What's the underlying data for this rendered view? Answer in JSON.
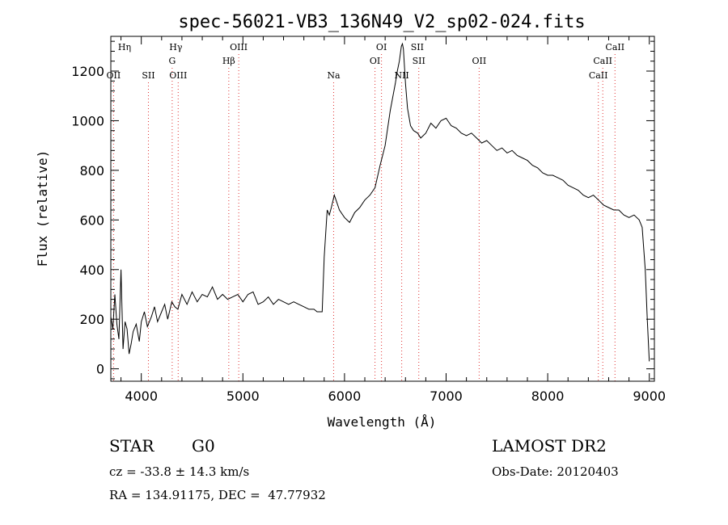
{
  "chart_data": {
    "type": "line",
    "title": "spec-56021-VB3_136N49_V2_sp02-024.fits",
    "xlabel": "Wavelength (Å)",
    "ylabel": "Flux (relative)",
    "xlim": [
      3700,
      9050
    ],
    "ylim": [
      -50,
      1340
    ],
    "x_ticks": [
      4000,
      5000,
      6000,
      7000,
      8000,
      9000
    ],
    "y_ticks": [
      0,
      200,
      400,
      600,
      800,
      1000,
      1200
    ],
    "grid": false,
    "series": [
      {
        "x": [
          3700,
          3720,
          3740,
          3760,
          3780,
          3800,
          3820,
          3840,
          3860,
          3880,
          3900,
          3920,
          3950,
          3980,
          4000,
          4030,
          4060,
          4100,
          4130,
          4160,
          4200,
          4230,
          4260,
          4300,
          4330,
          4360,
          4400,
          4450,
          4500,
          4550,
          4600,
          4650,
          4700,
          4750,
          4800,
          4850,
          4900,
          4950,
          5000,
          5050,
          5100,
          5150,
          5200,
          5250,
          5300,
          5350,
          5400,
          5450,
          5500,
          5550,
          5600,
          5650,
          5700,
          5730,
          5760,
          5780,
          5800,
          5830,
          5850,
          5870,
          5900,
          5950,
          6000,
          6050,
          6100,
          6150,
          6200,
          6250,
          6300,
          6350,
          6400,
          6450,
          6500,
          6520,
          6540,
          6560,
          6570,
          6580,
          6600,
          6620,
          6650,
          6680,
          6720,
          6750,
          6800,
          6850,
          6900,
          6950,
          7000,
          7050,
          7100,
          7150,
          7200,
          7250,
          7300,
          7350,
          7400,
          7450,
          7500,
          7550,
          7600,
          7650,
          7700,
          7750,
          7800,
          7850,
          7900,
          7950,
          8000,
          8050,
          8100,
          8150,
          8200,
          8250,
          8300,
          8350,
          8400,
          8450,
          8500,
          8550,
          8600,
          8650,
          8700,
          8750,
          8800,
          8850,
          8900,
          8930,
          8960,
          8980,
          9000
        ],
        "y": [
          210,
          160,
          300,
          180,
          120,
          400,
          80,
          190,
          160,
          60,
          100,
          150,
          180,
          110,
          190,
          230,
          170,
          210,
          250,
          190,
          230,
          260,
          200,
          270,
          250,
          240,
          300,
          260,
          310,
          270,
          300,
          290,
          330,
          280,
          300,
          280,
          290,
          300,
          270,
          300,
          310,
          260,
          270,
          290,
          260,
          280,
          270,
          260,
          270,
          260,
          250,
          240,
          240,
          230,
          230,
          230,
          450,
          640,
          620,
          650,
          700,
          640,
          610,
          590,
          630,
          650,
          680,
          700,
          730,
          820,
          900,
          1040,
          1150,
          1200,
          1240,
          1300,
          1310,
          1290,
          1150,
          1050,
          980,
          960,
          950,
          930,
          950,
          990,
          970,
          1000,
          1010,
          980,
          970,
          950,
          940,
          950,
          930,
          910,
          920,
          900,
          880,
          890,
          870,
          880,
          860,
          850,
          840,
          820,
          810,
          790,
          780,
          780,
          770,
          760,
          740,
          730,
          720,
          700,
          690,
          700,
          680,
          660,
          650,
          640,
          640,
          620,
          610,
          620,
          600,
          570,
          400,
          200,
          30
        ]
      }
    ],
    "line_labels": [
      {
        "text": "Hη",
        "row": 1,
        "wl": 3835,
        "line": false
      },
      {
        "text": "OII",
        "row": 3,
        "wl": 3727,
        "line": true
      },
      {
        "text": "SII",
        "row": 3,
        "wl": 4070,
        "line": true
      },
      {
        "text": "Hγ",
        "row": 1,
        "wl": 4340,
        "line": false
      },
      {
        "text": "G",
        "row": 2,
        "wl": 4304,
        "line": true
      },
      {
        "text": "OIII",
        "row": 3,
        "wl": 4363,
        "line": true
      },
      {
        "text": "OIII",
        "row": 1,
        "wl": 4959,
        "line": true
      },
      {
        "text": "Hβ",
        "row": 2,
        "wl": 4861,
        "line": true
      },
      {
        "text": "Na",
        "row": 3,
        "wl": 5893,
        "line": true
      },
      {
        "text": "OI",
        "row": 1,
        "wl": 6364,
        "line": true
      },
      {
        "text": "OI",
        "row": 2,
        "wl": 6300,
        "line": true
      },
      {
        "text": "NII",
        "row": 3,
        "wl": 6563,
        "line": true
      },
      {
        "text": "SII",
        "row": 1,
        "wl": 6716,
        "line": false
      },
      {
        "text": "SII",
        "row": 2,
        "wl": 6731,
        "line": true
      },
      {
        "text": "OII",
        "row": 2,
        "wl": 7325,
        "line": true
      },
      {
        "text": "CaII",
        "row": 1,
        "wl": 8662,
        "line": true
      },
      {
        "text": "CaII",
        "row": 2,
        "wl": 8542,
        "line": true
      },
      {
        "text": "CaII",
        "row": 3,
        "wl": 8498,
        "line": true
      }
    ],
    "colors": {
      "spectrum": "#000000",
      "marker_line": "#e03030",
      "axes": "#000000"
    }
  },
  "info": {
    "object_class": "STAR",
    "subclass": "G0",
    "survey": "LAMOST DR2",
    "redshift": "cz = -33.8 ± 14.3 km/s",
    "obs_date": "Obs-Date: 20120403",
    "coords": "RA = 134.91175, DEC =  47.77932"
  }
}
